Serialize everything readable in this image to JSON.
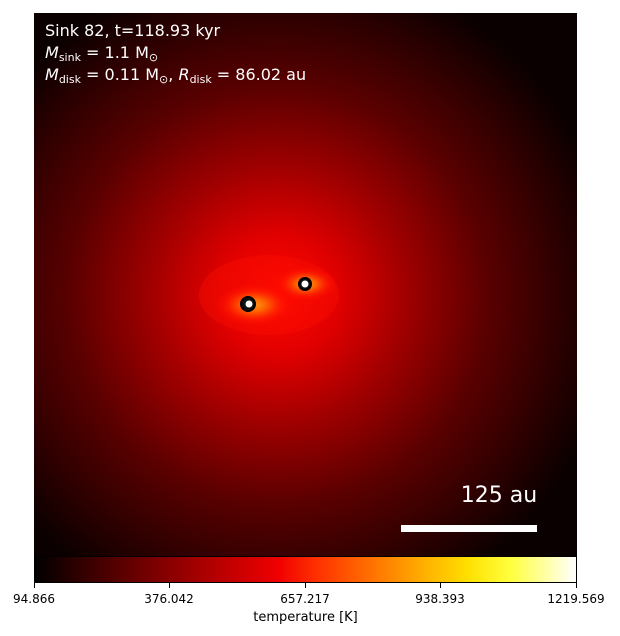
{
  "annotation": {
    "line1": "Sink 82, t=118.93 kyr",
    "sink_symbol": "M",
    "sink_sub": "sink",
    "sink_value": " = 1.1 M",
    "sink_sun": "⊙",
    "disk_symbol": "M",
    "disk_sub": "disk",
    "disk_value": " = 0.11 M",
    "disk_sun": "⊙",
    "radius_symbol": "R",
    "radius_sub": "disk",
    "radius_value": " = 86.02 au"
  },
  "scale_bar": {
    "label": "125 au"
  },
  "colorbar": {
    "label": "temperature [K]",
    "ticks": [
      "94.866",
      "376.042",
      "657.217",
      "938.393",
      "1219.569"
    ]
  }
}
